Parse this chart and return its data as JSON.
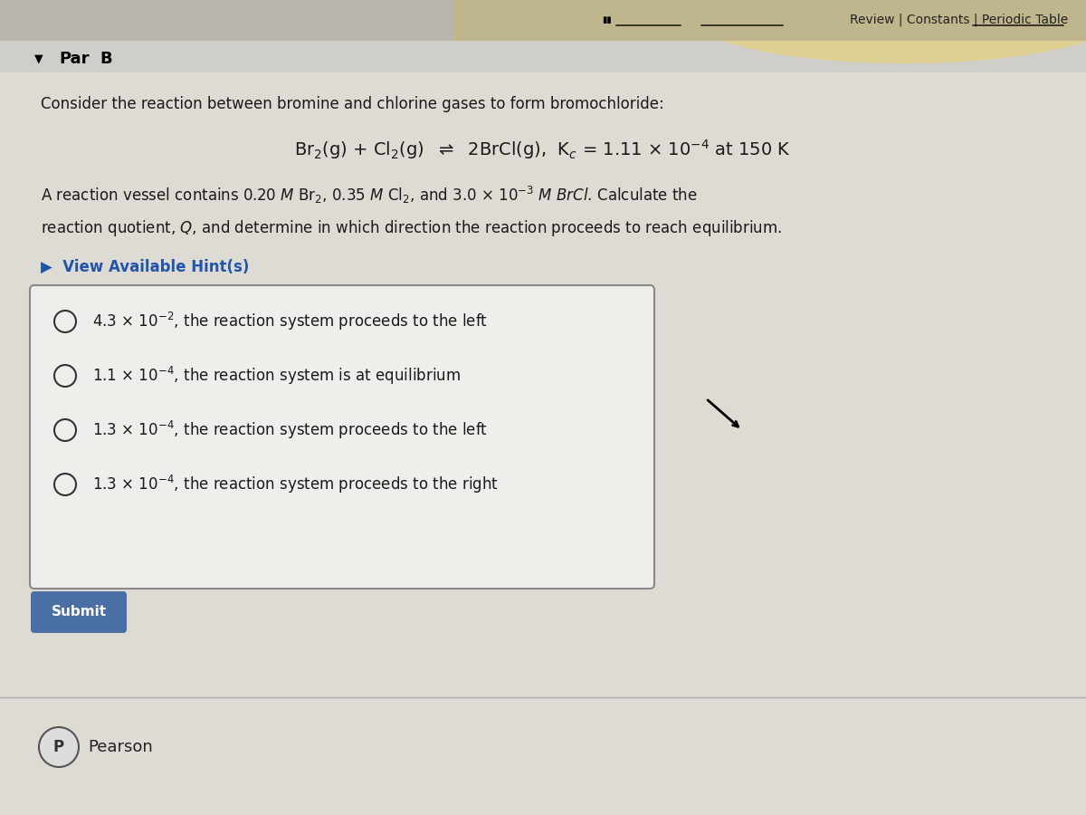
{
  "bg_color": "#d0cec8",
  "header_bar_color": "#b8b4ae",
  "title": "Par B",
  "review_links": "Review | Constants | Periodic Table",
  "intro_text": "Consider the reaction between bromine and chlorine gases to form bromochloride:",
  "equation": "Br₂(g) + Cl₂(g)  ⇌  2BrCl(g),  Kₓ = 1.11 × 10⁻⁴ at 150 K",
  "body_text1": "A reaction vessel contains 0.20  M Br₂, 0.35  M Cl₂, and 3.0 × 10⁻³  M BrCl. Calculate the",
  "body_text2": "reaction quotient, Q, and determine in which direction the reaction proceeds to reach equilibrium.",
  "hint_text": "▶  View Available Hint(s)",
  "options": [
    "4.3 × 10⁻², the reaction system proceeds to the left",
    "1.1 × 10⁻⁴, the reaction system is at equilibrium",
    "1.3 × 10⁻⁴, the reaction system proceeds to the left",
    "1.3 × 10⁻⁴, the reaction system proceeds to the right"
  ],
  "submit_btn_color": "#4a6fa5",
  "submit_btn_text": "Submit",
  "pearson_text": "Pearson",
  "box_bg": "#f0eeeb",
  "box_border": "#888888",
  "text_color": "#1a1a1a",
  "hint_color": "#2255aa",
  "link_color": "#222222"
}
